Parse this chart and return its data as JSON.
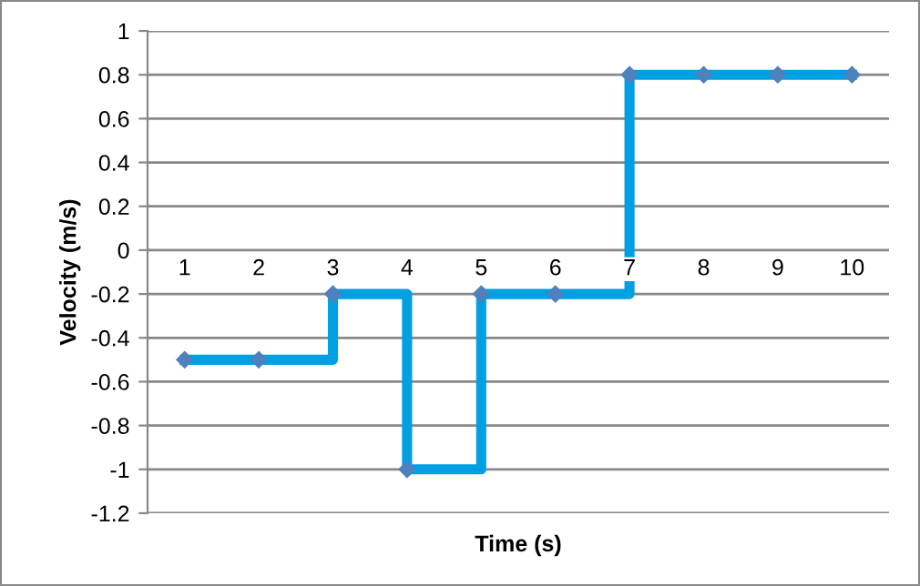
{
  "chart_data": {
    "type": "step",
    "xlabel": "Time (s)",
    "ylabel": "Velocity (m/s)",
    "categories": [
      "1",
      "2",
      "3",
      "4",
      "5",
      "6",
      "7",
      "8",
      "9",
      "10"
    ],
    "series": [
      {
        "color": "#00a0e3",
        "values": [
          -0.5,
          -0.5,
          -0.2,
          -1,
          -0.2,
          -0.2,
          0.8,
          0.8,
          0.8,
          0.8
        ]
      }
    ],
    "ylim": [
      -1.2,
      1
    ],
    "yticks": [
      -1.2,
      -1,
      -0.8,
      -0.6,
      -0.4,
      -0.2,
      0,
      0.2,
      0.4,
      0.6,
      0.8,
      1
    ],
    "grid": "y",
    "marker": "diamond",
    "line_style": "solid",
    "legend": false
  }
}
